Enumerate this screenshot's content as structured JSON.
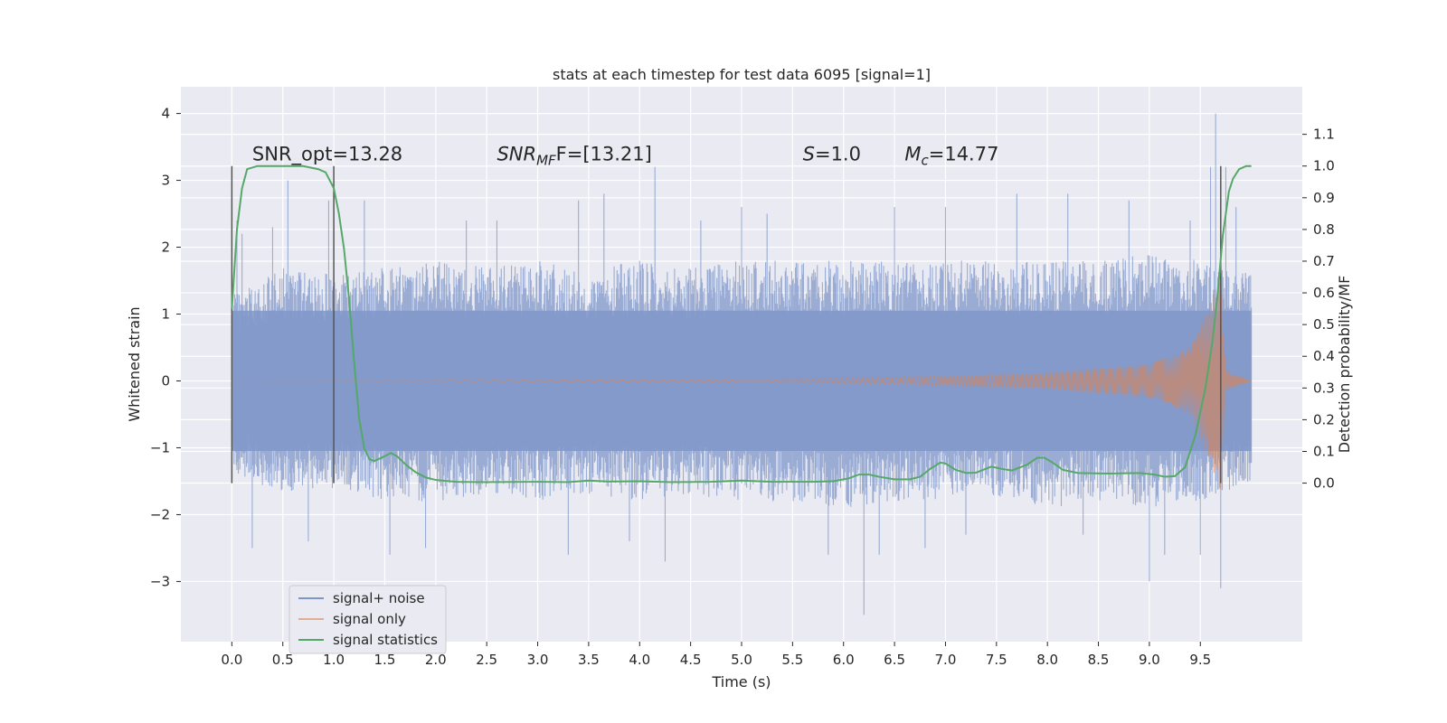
{
  "chart_data": {
    "type": "line",
    "title": "stats at each timestep for test data 6095 [signal=1]",
    "xlabel": "Time (s)",
    "ylabel": "Whitened strain",
    "y2label": "Detection probability/MF",
    "xlim": [
      -0.5,
      10.5
    ],
    "ylim": [
      -3.9,
      4.4
    ],
    "y2lim": [
      -0.5,
      1.25
    ],
    "xticks": [
      0.0,
      0.5,
      1.0,
      1.5,
      2.0,
      2.5,
      3.0,
      3.5,
      4.0,
      4.5,
      5.0,
      5.5,
      6.0,
      6.5,
      7.0,
      7.5,
      8.0,
      8.5,
      9.0,
      9.5
    ],
    "xtick_labels": [
      "0.0",
      "0.5",
      "1.0",
      "1.5",
      "2.0",
      "2.5",
      "3.0",
      "3.5",
      "4.0",
      "4.5",
      "5.0",
      "5.5",
      "6.0",
      "6.5",
      "7.0",
      "7.5",
      "8.0",
      "8.5",
      "9.0",
      "9.5"
    ],
    "yticks": [
      -3,
      -2,
      -1,
      0,
      1,
      2,
      3,
      4
    ],
    "ytick_labels": [
      "−3",
      "−2",
      "−1",
      "0",
      "1",
      "2",
      "3",
      "4"
    ],
    "y2ticks": [
      0.0,
      0.1,
      0.2,
      0.3,
      0.4,
      0.5,
      0.6,
      0.7,
      0.8,
      0.9,
      1.0,
      1.1
    ],
    "y2tick_labels": [
      "0.0",
      "0.1",
      "0.2",
      "0.3",
      "0.4",
      "0.5",
      "0.6",
      "0.7",
      "0.8",
      "0.9",
      "1.0",
      "1.1"
    ],
    "grid": true,
    "legend_position": "lower-left",
    "annotations": [
      {
        "text": "SNR_opt=13.28",
        "x": 0.2,
        "y": 3.3
      },
      {
        "text": "SNR",
        "sub": "MF",
        "tail": "F=[13.21]",
        "italic": true,
        "x": 2.6,
        "y": 3.3
      },
      {
        "text": "S",
        "tail": "=1.0",
        "italic": true,
        "x": 5.6,
        "y": 3.3
      },
      {
        "text": "M",
        "sub": "c",
        "tail": "=14.77",
        "italic": true,
        "x": 6.6,
        "y": 3.3
      }
    ],
    "vertical_markers": [
      {
        "x": 0.0,
        "ymin": 0.0,
        "ymax": 1.0
      },
      {
        "x": 1.0,
        "ymin": 0.0,
        "ymax": 1.0
      },
      {
        "x": 9.7,
        "ymin": 0.0,
        "ymax": 1.0
      }
    ],
    "series": [
      {
        "name": "signal+ noise",
        "color": "#7f97c8",
        "axis": "left",
        "t_range": [
          0.0,
          10.0
        ],
        "envelope": [
          [
            0.0,
            -1.4,
            1.3
          ],
          [
            0.5,
            -1.7,
            1.7
          ],
          [
            1.0,
            -1.6,
            1.6
          ],
          [
            1.5,
            -1.8,
            1.7
          ],
          [
            2.0,
            -1.8,
            1.8
          ],
          [
            2.5,
            -1.7,
            1.7
          ],
          [
            3.0,
            -1.8,
            1.8
          ],
          [
            3.5,
            -1.7,
            1.7
          ],
          [
            4.0,
            -1.8,
            1.8
          ],
          [
            4.5,
            -1.7,
            1.7
          ],
          [
            5.0,
            -1.8,
            1.8
          ],
          [
            5.5,
            -1.8,
            1.8
          ],
          [
            6.0,
            -1.9,
            1.8
          ],
          [
            6.5,
            -1.8,
            1.8
          ],
          [
            7.0,
            -1.8,
            1.8
          ],
          [
            7.5,
            -1.8,
            1.8
          ],
          [
            8.0,
            -1.9,
            1.8
          ],
          [
            8.5,
            -1.8,
            1.8
          ],
          [
            9.0,
            -1.9,
            1.9
          ],
          [
            9.5,
            -1.8,
            1.8
          ],
          [
            10.0,
            -1.5,
            1.6
          ]
        ],
        "peaks": [
          [
            0.05,
            2.4
          ],
          [
            0.1,
            2.2
          ],
          [
            0.2,
            -2.5
          ],
          [
            0.4,
            2.3
          ],
          [
            0.55,
            3.0
          ],
          [
            0.75,
            -2.4
          ],
          [
            0.95,
            2.7
          ],
          [
            1.3,
            2.7
          ],
          [
            1.55,
            -2.6
          ],
          [
            1.9,
            -2.5
          ],
          [
            2.3,
            2.4
          ],
          [
            2.6,
            2.4
          ],
          [
            3.3,
            -2.6
          ],
          [
            3.4,
            2.7
          ],
          [
            3.65,
            2.8
          ],
          [
            3.9,
            -2.4
          ],
          [
            4.15,
            3.2
          ],
          [
            4.25,
            -2.7
          ],
          [
            4.6,
            2.4
          ],
          [
            5.0,
            2.6
          ],
          [
            5.25,
            2.5
          ],
          [
            5.85,
            -2.6
          ],
          [
            6.2,
            -3.5
          ],
          [
            6.35,
            -2.6
          ],
          [
            6.5,
            2.6
          ],
          [
            6.8,
            -2.5
          ],
          [
            7.0,
            2.6
          ],
          [
            7.2,
            -2.3
          ],
          [
            7.7,
            2.8
          ],
          [
            8.2,
            2.8
          ],
          [
            8.35,
            -2.3
          ],
          [
            8.8,
            2.7
          ],
          [
            9.0,
            -3.0
          ],
          [
            9.15,
            -2.6
          ],
          [
            9.4,
            2.4
          ],
          [
            9.5,
            -2.6
          ],
          [
            9.6,
            3.2
          ],
          [
            9.65,
            4.0
          ],
          [
            9.7,
            -3.1
          ],
          [
            9.75,
            3.2
          ],
          [
            9.85,
            2.6
          ]
        ]
      },
      {
        "name": "signal only",
        "color": "#dd8452",
        "axis": "left",
        "t_range": [
          0.0,
          10.0
        ],
        "amplitude_points": [
          [
            0.0,
            0.0
          ],
          [
            5.0,
            0.02
          ],
          [
            6.0,
            0.04
          ],
          [
            7.0,
            0.07
          ],
          [
            8.0,
            0.12
          ],
          [
            9.0,
            0.25
          ],
          [
            9.4,
            0.5
          ],
          [
            9.6,
            1.2
          ],
          [
            9.7,
            1.7
          ],
          [
            9.75,
            0.15
          ],
          [
            10.0,
            0.0
          ]
        ]
      },
      {
        "name": "signal statistics",
        "color": "#55a868",
        "axis": "right",
        "points": [
          [
            0.0,
            0.55
          ],
          [
            0.05,
            0.8
          ],
          [
            0.1,
            0.93
          ],
          [
            0.15,
            0.99
          ],
          [
            0.25,
            1.0
          ],
          [
            0.5,
            1.0
          ],
          [
            0.7,
            1.0
          ],
          [
            0.85,
            0.99
          ],
          [
            0.92,
            0.98
          ],
          [
            1.0,
            0.93
          ],
          [
            1.05,
            0.85
          ],
          [
            1.1,
            0.74
          ],
          [
            1.15,
            0.58
          ],
          [
            1.2,
            0.38
          ],
          [
            1.25,
            0.2
          ],
          [
            1.3,
            0.11
          ],
          [
            1.35,
            0.075
          ],
          [
            1.4,
            0.07
          ],
          [
            1.5,
            0.085
          ],
          [
            1.56,
            0.095
          ],
          [
            1.62,
            0.085
          ],
          [
            1.7,
            0.06
          ],
          [
            1.8,
            0.035
          ],
          [
            1.9,
            0.018
          ],
          [
            2.0,
            0.01
          ],
          [
            2.2,
            0.004
          ],
          [
            2.5,
            0.003
          ],
          [
            3.0,
            0.004
          ],
          [
            3.3,
            0.003
          ],
          [
            3.5,
            0.008
          ],
          [
            3.7,
            0.005
          ],
          [
            4.0,
            0.006
          ],
          [
            4.3,
            0.003
          ],
          [
            4.7,
            0.004
          ],
          [
            5.0,
            0.008
          ],
          [
            5.3,
            0.004
          ],
          [
            5.7,
            0.004
          ],
          [
            5.9,
            0.006
          ],
          [
            6.05,
            0.015
          ],
          [
            6.15,
            0.027
          ],
          [
            6.25,
            0.027
          ],
          [
            6.35,
            0.02
          ],
          [
            6.5,
            0.012
          ],
          [
            6.65,
            0.012
          ],
          [
            6.75,
            0.02
          ],
          [
            6.85,
            0.045
          ],
          [
            6.95,
            0.065
          ],
          [
            7.0,
            0.062
          ],
          [
            7.1,
            0.042
          ],
          [
            7.2,
            0.032
          ],
          [
            7.3,
            0.033
          ],
          [
            7.45,
            0.052
          ],
          [
            7.55,
            0.045
          ],
          [
            7.65,
            0.04
          ],
          [
            7.8,
            0.058
          ],
          [
            7.9,
            0.08
          ],
          [
            7.97,
            0.08
          ],
          [
            8.05,
            0.065
          ],
          [
            8.15,
            0.042
          ],
          [
            8.3,
            0.032
          ],
          [
            8.6,
            0.03
          ],
          [
            8.9,
            0.032
          ],
          [
            9.05,
            0.027
          ],
          [
            9.15,
            0.02
          ],
          [
            9.25,
            0.022
          ],
          [
            9.35,
            0.05
          ],
          [
            9.45,
            0.15
          ],
          [
            9.55,
            0.3
          ],
          [
            9.62,
            0.45
          ],
          [
            9.67,
            0.6
          ],
          [
            9.72,
            0.78
          ],
          [
            9.78,
            0.92
          ],
          [
            9.82,
            0.96
          ],
          [
            9.88,
            0.99
          ],
          [
            9.95,
            1.0
          ],
          [
            10.0,
            1.0
          ]
        ]
      }
    ]
  }
}
